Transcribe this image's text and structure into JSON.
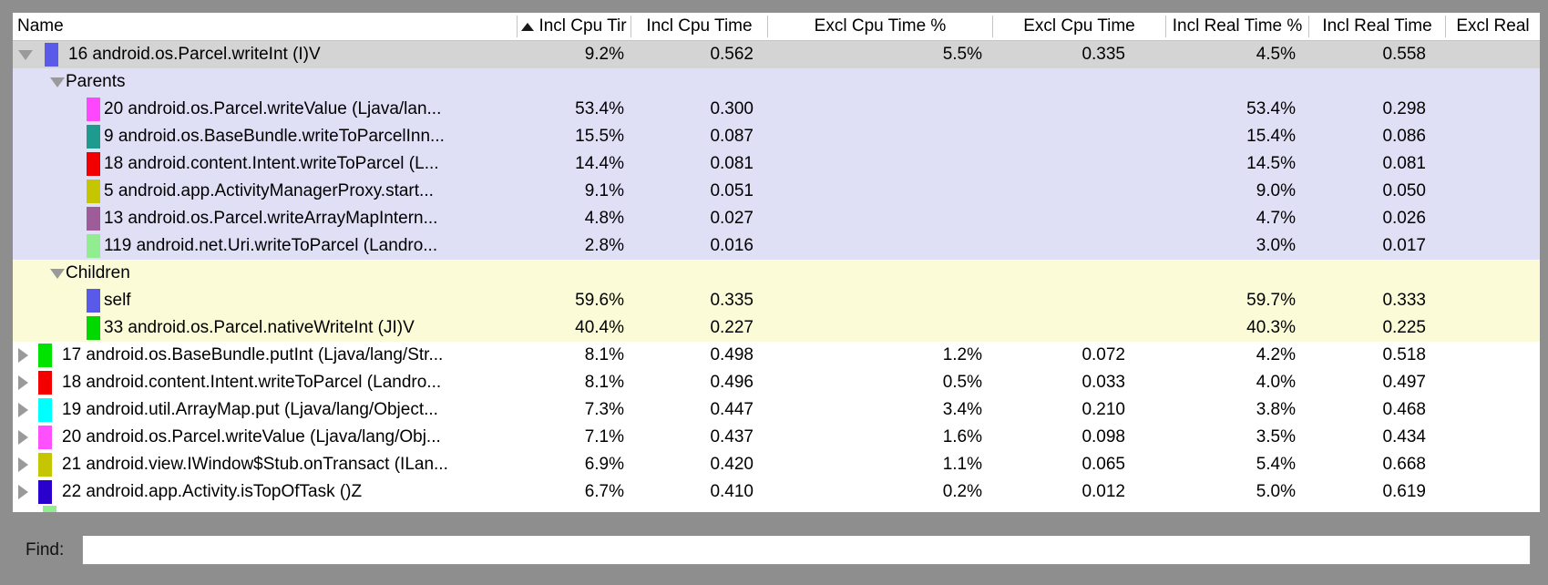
{
  "colors": {
    "frame": "#8e8e8e",
    "selected_row_bg": "#d4d4d4",
    "parents_section_bg": "#dfdff6",
    "children_section_bg": "#fbfbd7",
    "header_separator": "#c4c4c4",
    "disclosure_triangle": "#9a9a9a"
  },
  "header": {
    "sort_icon": "ascending-triangle",
    "columns": [
      {
        "id": "name",
        "label": "Name"
      },
      {
        "id": "incl_cpu_pct",
        "label": "Incl Cpu Tir",
        "sorted": true
      },
      {
        "id": "incl_cpu",
        "label": "Incl Cpu Time"
      },
      {
        "id": "excl_cpu_pct",
        "label": "Excl Cpu Time %"
      },
      {
        "id": "excl_cpu",
        "label": "Excl Cpu Time"
      },
      {
        "id": "incl_real_pct",
        "label": "Incl Real Time %"
      },
      {
        "id": "incl_real",
        "label": "Incl Real Time"
      },
      {
        "id": "excl_real",
        "label": "Excl Real"
      }
    ]
  },
  "rows": [
    {
      "kind": "method",
      "disclosure": "expanded",
      "selected": true,
      "swatch": "#5a5aea",
      "name": "16 android.os.Parcel.writeInt (I)V",
      "values": [
        "9.2%",
        "0.562",
        "5.5%",
        "0.335",
        "4.5%",
        "0.558",
        ""
      ]
    },
    {
      "kind": "group",
      "section": "parents",
      "name": "Parents"
    },
    {
      "kind": "nested",
      "section": "parents",
      "swatch": "#ff47ff",
      "name": "20 android.os.Parcel.writeValue (Ljava/lan...",
      "values": [
        "53.4%",
        "0.300",
        "",
        "",
        "53.4%",
        "0.298",
        ""
      ]
    },
    {
      "kind": "nested",
      "section": "parents",
      "swatch": "#1f9a8e",
      "name": "9 android.os.BaseBundle.writeToParcelInn...",
      "values": [
        "15.5%",
        "0.087",
        "",
        "",
        "15.4%",
        "0.086",
        ""
      ]
    },
    {
      "kind": "nested",
      "section": "parents",
      "swatch": "#f20000",
      "name": "18 android.content.Intent.writeToParcel (L...",
      "values": [
        "14.4%",
        "0.081",
        "",
        "",
        "14.5%",
        "0.081",
        ""
      ]
    },
    {
      "kind": "nested",
      "section": "parents",
      "swatch": "#c6c600",
      "name": "5 android.app.ActivityManagerProxy.start...",
      "values": [
        "9.1%",
        "0.051",
        "",
        "",
        "9.0%",
        "0.050",
        ""
      ]
    },
    {
      "kind": "nested",
      "section": "parents",
      "swatch": "#9e5d99",
      "name": "13 android.os.Parcel.writeArrayMapIntern...",
      "values": [
        "4.8%",
        "0.027",
        "",
        "",
        "4.7%",
        "0.026",
        ""
      ]
    },
    {
      "kind": "nested",
      "section": "parents",
      "swatch": "#90ee90",
      "name": "119 android.net.Uri.writeToParcel (Landro...",
      "values": [
        "2.8%",
        "0.016",
        "",
        "",
        "3.0%",
        "0.017",
        ""
      ]
    },
    {
      "kind": "group",
      "section": "children",
      "name": "Children"
    },
    {
      "kind": "nested",
      "section": "children",
      "swatch": "#5a5aea",
      "name": "self",
      "values": [
        "59.6%",
        "0.335",
        "",
        "",
        "59.7%",
        "0.333",
        ""
      ]
    },
    {
      "kind": "nested",
      "section": "children",
      "swatch": "#00d800",
      "name": "33 android.os.Parcel.nativeWriteInt (JI)V",
      "values": [
        "40.4%",
        "0.227",
        "",
        "",
        "40.3%",
        "0.225",
        ""
      ]
    },
    {
      "kind": "method",
      "disclosure": "collapsed",
      "swatch": "#00e300",
      "name": "17 android.os.BaseBundle.putInt (Ljava/lang/Str...",
      "values": [
        "8.1%",
        "0.498",
        "1.2%",
        "0.072",
        "4.2%",
        "0.518",
        ""
      ]
    },
    {
      "kind": "method",
      "disclosure": "collapsed",
      "swatch": "#f20000",
      "name": "18 android.content.Intent.writeToParcel (Landro...",
      "values": [
        "8.1%",
        "0.496",
        "0.5%",
        "0.033",
        "4.0%",
        "0.497",
        ""
      ]
    },
    {
      "kind": "method",
      "disclosure": "collapsed",
      "swatch": "#00ffff",
      "name": "19 android.util.ArrayMap.put (Ljava/lang/Object...",
      "values": [
        "7.3%",
        "0.447",
        "3.4%",
        "0.210",
        "3.8%",
        "0.468",
        ""
      ]
    },
    {
      "kind": "method",
      "disclosure": "collapsed",
      "swatch": "#ff50ff",
      "name": "20 android.os.Parcel.writeValue (Ljava/lang/Obj...",
      "values": [
        "7.1%",
        "0.437",
        "1.6%",
        "0.098",
        "3.5%",
        "0.434",
        ""
      ]
    },
    {
      "kind": "method",
      "disclosure": "collapsed",
      "swatch": "#c6c600",
      "name": "21 android.view.IWindow$Stub.onTransact (ILan...",
      "values": [
        "6.9%",
        "0.420",
        "1.1%",
        "0.065",
        "5.4%",
        "0.668",
        ""
      ]
    },
    {
      "kind": "method",
      "disclosure": "collapsed",
      "swatch": "#2a00cd",
      "name": "22 android.app.Activity.isTopOfTask ()Z",
      "values": [
        "6.7%",
        "0.410",
        "0.2%",
        "0.012",
        "5.0%",
        "0.619",
        ""
      ]
    }
  ],
  "partial_row": {
    "swatch": "#90ee90"
  },
  "find": {
    "label": "Find:",
    "value": ""
  }
}
